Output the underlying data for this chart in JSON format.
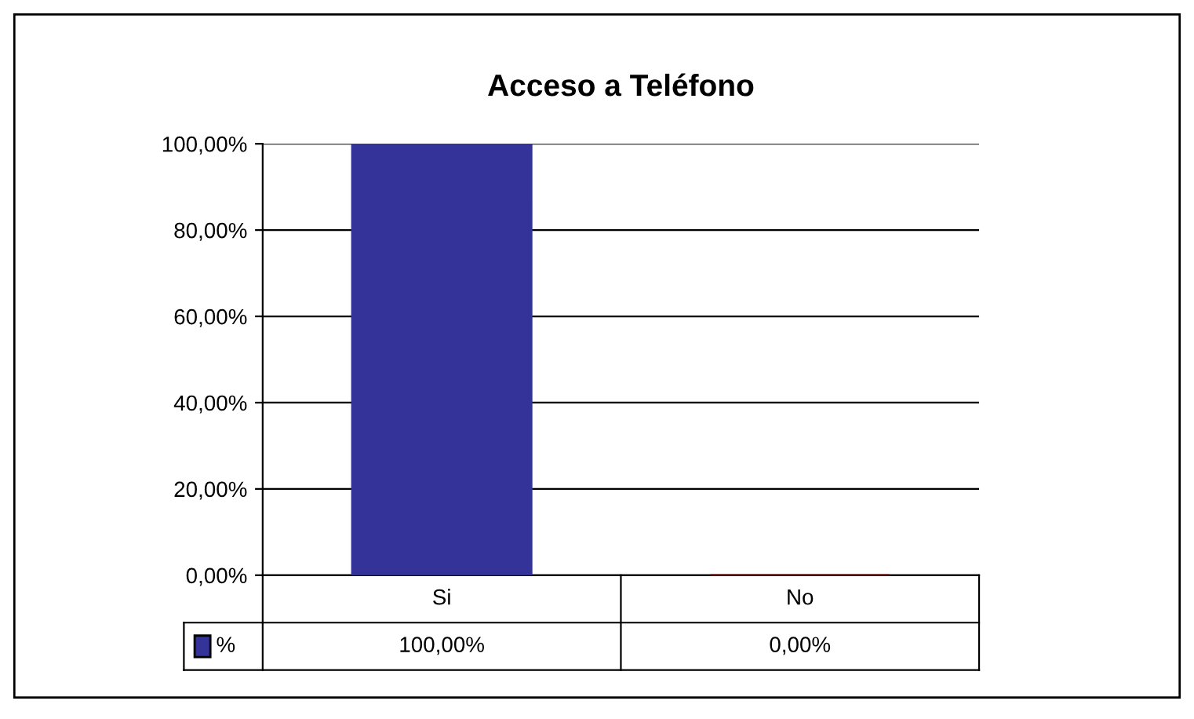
{
  "chart_data": {
    "type": "bar",
    "title": "Acceso a Teléfono",
    "categories": [
      "Si",
      "No"
    ],
    "series": [
      {
        "name": "%",
        "colors": [
          "#333399",
          "#990000"
        ],
        "values": [
          100,
          0
        ],
        "value_labels": [
          "100,00%",
          "0,00%"
        ]
      }
    ],
    "ylim": [
      0,
      100
    ],
    "yticks": [
      {
        "value": 0,
        "label": "0,00%"
      },
      {
        "value": 20,
        "label": "20,00%"
      },
      {
        "value": 40,
        "label": "40,00%"
      },
      {
        "value": 60,
        "label": "60,00%"
      },
      {
        "value": 80,
        "label": "80,00%"
      },
      {
        "value": 100,
        "label": "100,00%"
      }
    ],
    "grid": "y",
    "legend": "bottom"
  }
}
